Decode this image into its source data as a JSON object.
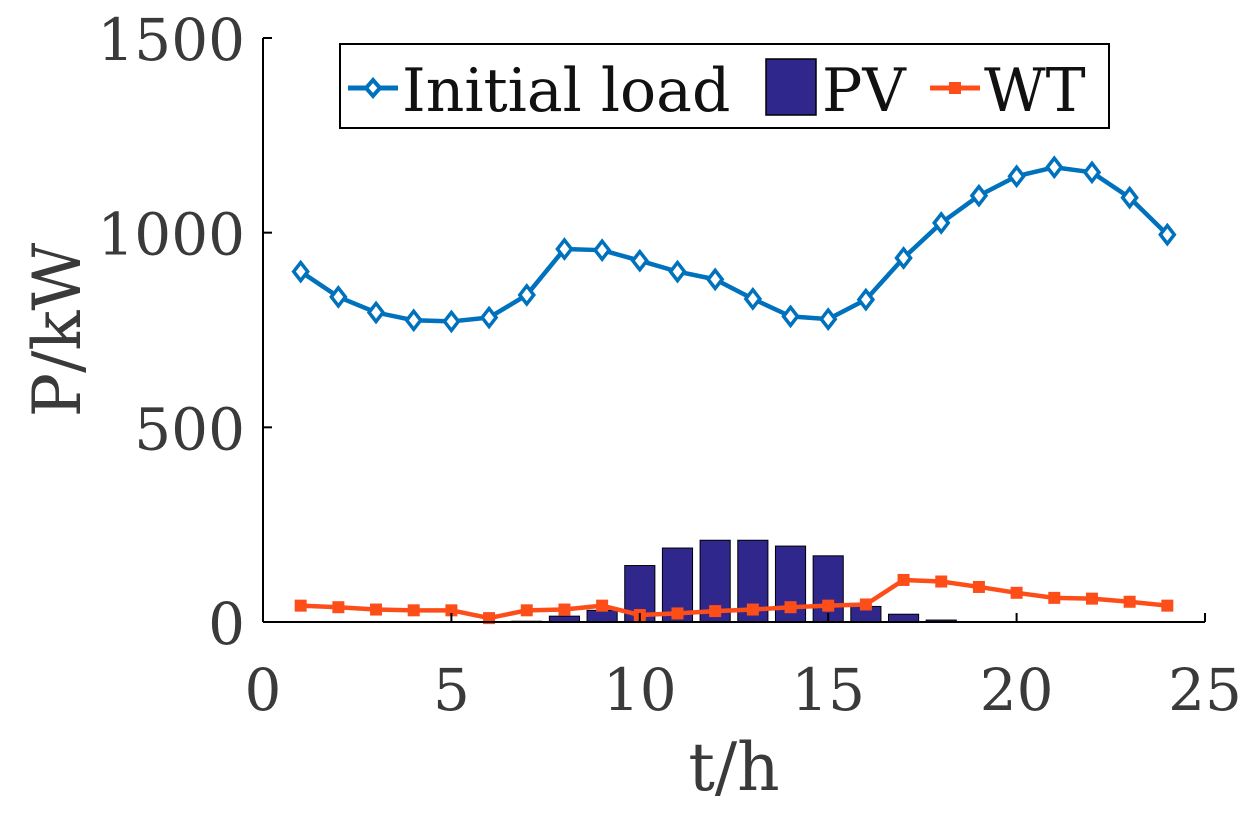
{
  "chart_data": {
    "type": "bar+line",
    "title": "",
    "xlabel": "t/h",
    "ylabel": "P/kW",
    "xlim": [
      0,
      25
    ],
    "ylim": [
      0,
      1500
    ],
    "xticks": [
      "0",
      "5",
      "10",
      "15",
      "20",
      "25"
    ],
    "yticks": [
      "0",
      "500",
      "1000",
      "1500"
    ],
    "grid": false,
    "legend_position": "top",
    "x": [
      1,
      2,
      3,
      4,
      5,
      6,
      7,
      8,
      9,
      10,
      11,
      12,
      13,
      14,
      15,
      16,
      17,
      18,
      19,
      20,
      21,
      22,
      23,
      24
    ],
    "series": [
      {
        "name": "Initial load",
        "type": "line",
        "marker": "diamond",
        "color": "#0072bd",
        "values": [
          900,
          835,
          795,
          775,
          772,
          782,
          840,
          958,
          955,
          928,
          900,
          880,
          830,
          785,
          778,
          828,
          935,
          1025,
          1095,
          1145,
          1168,
          1155,
          1090,
          995
        ]
      },
      {
        "name": "PV",
        "type": "bar",
        "color": "#30278c",
        "values": [
          0,
          0,
          0,
          0,
          0,
          0,
          2,
          15,
          30,
          145,
          190,
          210,
          210,
          195,
          170,
          40,
          20,
          5,
          1,
          0,
          0,
          0,
          0,
          0
        ]
      },
      {
        "name": "WT",
        "type": "line",
        "marker": "square",
        "color": "#fd4e1a",
        "values": [
          42,
          38,
          32,
          30,
          30,
          10,
          30,
          32,
          42,
          18,
          22,
          28,
          32,
          38,
          42,
          45,
          108,
          104,
          90,
          75,
          62,
          60,
          52,
          42
        ]
      }
    ]
  }
}
